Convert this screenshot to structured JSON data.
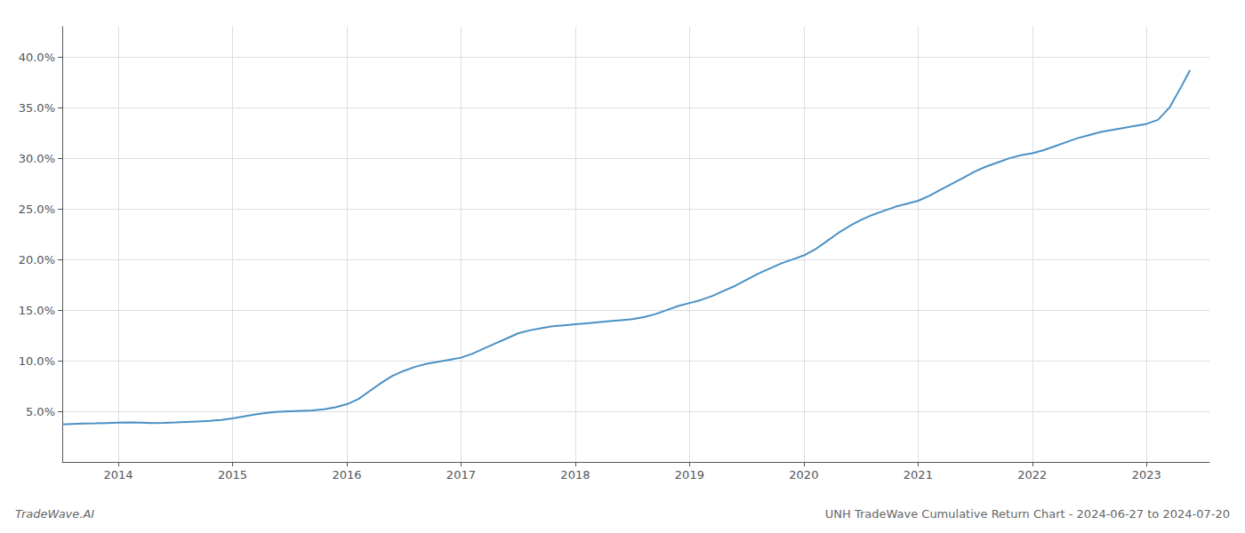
{
  "chart_data": {
    "type": "line",
    "title": "UNH TradeWave Cumulative Return Chart - 2024-06-27 to 2024-07-20",
    "annotations": [
      "TradeWave.AI"
    ],
    "color": "#4a90c4",
    "grid": true,
    "x": [
      2013.51,
      2013.6,
      2013.7,
      2013.8,
      2013.9,
      2014.0,
      2014.1,
      2014.2,
      2014.3,
      2014.4,
      2014.5,
      2014.6,
      2014.7,
      2014.8,
      2014.9,
      2015.0,
      2015.1,
      2015.2,
      2015.3,
      2015.4,
      2015.5,
      2015.6,
      2015.7,
      2015.8,
      2015.9,
      2016.0,
      2016.1,
      2016.2,
      2016.3,
      2016.4,
      2016.5,
      2016.6,
      2016.7,
      2016.8,
      2016.9,
      2017.0,
      2017.1,
      2017.2,
      2017.3,
      2017.4,
      2017.5,
      2017.6,
      2017.7,
      2017.8,
      2017.9,
      2018.0,
      2018.1,
      2018.2,
      2018.3,
      2018.4,
      2018.5,
      2018.6,
      2018.7,
      2018.8,
      2018.9,
      2019.0,
      2019.1,
      2019.2,
      2019.3,
      2019.4,
      2019.5,
      2019.6,
      2019.7,
      2019.8,
      2019.9,
      2020.0,
      2020.1,
      2020.2,
      2020.3,
      2020.4,
      2020.5,
      2020.6,
      2020.7,
      2020.8,
      2020.9,
      2021.0,
      2021.1,
      2021.2,
      2021.3,
      2021.4,
      2021.5,
      2021.6,
      2021.7,
      2021.8,
      2021.9,
      2022.0,
      2022.1,
      2022.2,
      2022.3,
      2022.4,
      2022.5,
      2022.6,
      2022.7,
      2022.8,
      2022.9,
      2023.0,
      2023.1,
      2023.2,
      2023.3,
      2023.38
    ],
    "values": [
      3.7,
      3.75,
      3.8,
      3.82,
      3.85,
      3.88,
      3.9,
      3.88,
      3.85,
      3.87,
      3.9,
      3.95,
      4.0,
      4.05,
      4.15,
      4.3,
      4.5,
      4.7,
      4.85,
      4.95,
      5.0,
      5.05,
      5.1,
      5.2,
      5.4,
      5.7,
      6.2,
      7.0,
      7.8,
      8.5,
      9.0,
      9.4,
      9.7,
      9.9,
      10.1,
      10.3,
      10.7,
      11.2,
      11.7,
      12.2,
      12.7,
      13.0,
      13.2,
      13.4,
      13.5,
      13.6,
      13.7,
      13.8,
      13.9,
      14.0,
      14.1,
      14.3,
      14.6,
      15.0,
      15.4,
      15.7,
      16.0,
      16.4,
      16.9,
      17.4,
      18.0,
      18.6,
      19.1,
      19.6,
      20.0,
      20.4,
      21.0,
      21.8,
      22.6,
      23.3,
      23.9,
      24.4,
      24.8,
      25.2,
      25.5,
      25.8,
      26.3,
      26.9,
      27.5,
      28.1,
      28.7,
      29.2,
      29.6,
      30.0,
      30.3,
      30.5,
      30.8,
      31.2,
      31.6,
      32.0,
      32.3,
      32.6,
      32.8,
      33.0,
      33.2,
      33.4,
      33.8,
      35.0,
      37.0,
      38.7
    ],
    "xlim": [
      2013.51,
      2023.55
    ],
    "xticks": [
      2014,
      2015,
      2016,
      2017,
      2018,
      2019,
      2020,
      2021,
      2022,
      2023
    ],
    "ylim": [
      0,
      43
    ],
    "yticks": [
      {
        "value": 5.0,
        "label": "5.0%"
      },
      {
        "value": 10.0,
        "label": "10.0%"
      },
      {
        "value": 15.0,
        "label": "15.0%"
      },
      {
        "value": 20.0,
        "label": "20.0%"
      },
      {
        "value": 25.0,
        "label": "25.0%"
      },
      {
        "value": 30.0,
        "label": "30.0%"
      },
      {
        "value": 35.0,
        "label": "35.0%"
      },
      {
        "value": 40.0,
        "label": "40.0%"
      }
    ]
  }
}
